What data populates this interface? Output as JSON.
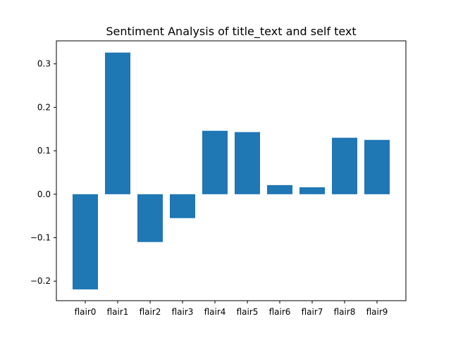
{
  "chart_data": {
    "type": "bar",
    "title": "Sentiment Analysis of title_text and self text",
    "xlabel": "",
    "ylabel": "",
    "categories": [
      "flair0",
      "flair1",
      "flair2",
      "flair3",
      "flair4",
      "flair5",
      "flair6",
      "flair7",
      "flair8",
      "flair9"
    ],
    "values": [
      -0.219,
      0.326,
      -0.11,
      -0.055,
      0.146,
      0.143,
      0.021,
      0.016,
      0.13,
      0.125
    ],
    "ylim": [
      -0.245,
      0.353
    ],
    "yticks": [
      -0.2,
      -0.1,
      0.0,
      0.1,
      0.2,
      0.3
    ],
    "ytick_labels": [
      "−0.2",
      "−0.1",
      "0.0",
      "0.1",
      "0.2",
      "0.3"
    ],
    "bar_color": "#1f77b4",
    "grid": false,
    "legend": "none"
  }
}
